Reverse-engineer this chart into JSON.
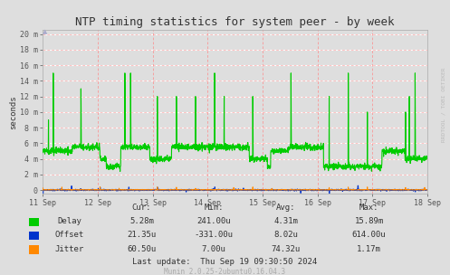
{
  "title": "NTP timing statistics for system peer - by week",
  "ylabel": "seconds",
  "bg_color": "#dedede",
  "plot_bg_color": "#dedede",
  "delay_color": "#00cc00",
  "offset_color": "#0033cc",
  "jitter_color": "#ff8800",
  "grid_white": "#ffffff",
  "grid_pink": "#ffaaaa",
  "grid_vline": "#ff8888",
  "x_tick_labels": [
    "11 Sep",
    "12 Sep",
    "13 Sep",
    "14 Sep",
    "15 Sep",
    "16 Sep",
    "17 Sep",
    "18 Sep"
  ],
  "y_tick_labels": [
    "0",
    "2 m",
    "4 m",
    "6 m",
    "8 m",
    "10 m",
    "12 m",
    "14 m",
    "16 m",
    "18 m",
    "20 m"
  ],
  "y_tick_vals": [
    0.0,
    0.002,
    0.004,
    0.006,
    0.008,
    0.01,
    0.012,
    0.014,
    0.016,
    0.018,
    0.02
  ],
  "ylim_max": 0.0205,
  "legend_labels": [
    "Delay",
    "Offset",
    "Jitter"
  ],
  "cur_values": [
    "5.28m",
    "21.35u",
    "60.50u"
  ],
  "min_values": [
    "241.00u",
    "-331.00u",
    "7.00u"
  ],
  "avg_values": [
    "4.31m",
    "8.02u",
    "74.32u"
  ],
  "max_values": [
    "15.89m",
    "614.00u",
    "1.17m"
  ],
  "last_update": "Last update:  Thu Sep 19 09:30:50 2024",
  "munin_ver": "Munin 2.0.25-2ubuntu0.16.04.3",
  "watermark": "RRDTOOL / TOBI OETIKER"
}
